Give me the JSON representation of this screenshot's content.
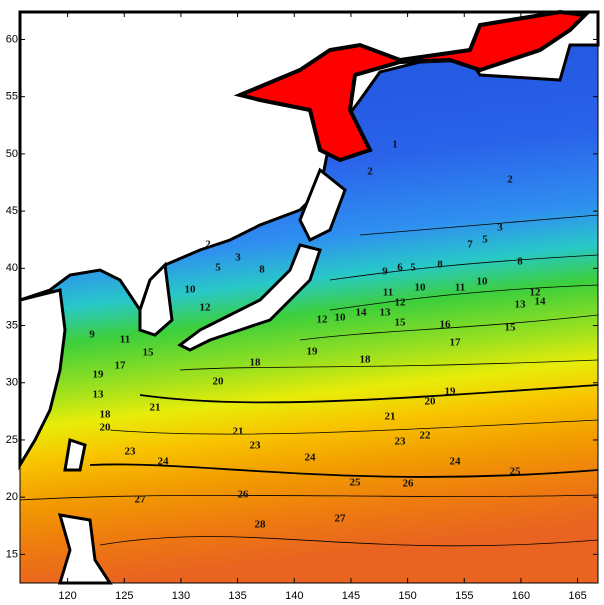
{
  "map": {
    "xlim": [
      115.8,
      166.8
    ],
    "ylim": [
      12.5,
      62.4
    ],
    "xticks": [
      120,
      125,
      130,
      135,
      140,
      145,
      150,
      155,
      160,
      165
    ],
    "yticks": [
      15,
      20,
      25,
      30,
      35,
      40,
      45,
      50,
      55,
      60
    ],
    "contour_labels": [
      2,
      3,
      5,
      8,
      10,
      12,
      11,
      9,
      15,
      17,
      19,
      13,
      18,
      20,
      21,
      20,
      18,
      19,
      18,
      12,
      10,
      14,
      13,
      15,
      16,
      17,
      15,
      13,
      12,
      14,
      11,
      10,
      11,
      10,
      12,
      9,
      6,
      5,
      8,
      7,
      5,
      8,
      3,
      2,
      2,
      1,
      19,
      20,
      21,
      21,
      23,
      22,
      23,
      24,
      24,
      25,
      23,
      24,
      25,
      26,
      26,
      27,
      27,
      28
    ]
  }
}
